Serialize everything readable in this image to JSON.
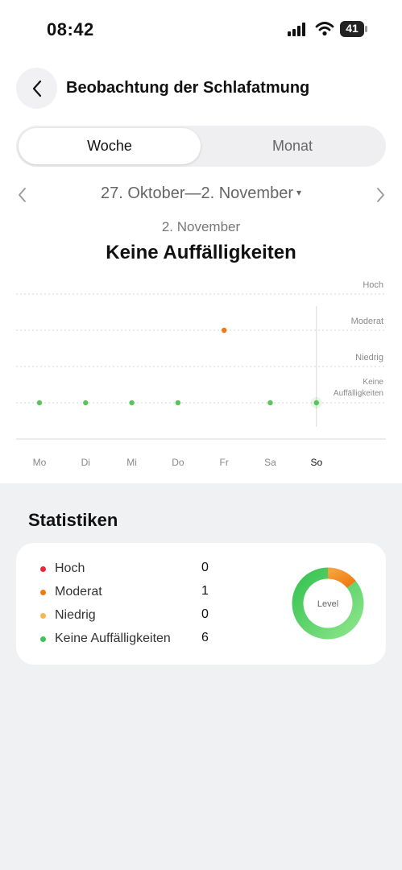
{
  "status_bar": {
    "time": "08:42",
    "battery": "41"
  },
  "header": {
    "title": "Beobachtung der Schlafatmung"
  },
  "tabs": [
    {
      "label": "Woche",
      "active": true
    },
    {
      "label": "Monat",
      "active": false
    }
  ],
  "range": {
    "label": "27. Oktober—2. November",
    "caret": "▾"
  },
  "selected": {
    "date": "2. November",
    "status": "Keine Auffälligkeiten"
  },
  "chart_data": {
    "type": "scatter",
    "categories": [
      "Mo",
      "Di",
      "Mi",
      "Do",
      "Fr",
      "Sa",
      "So"
    ],
    "levels": [
      "Hoch",
      "Moderat",
      "Niedrig",
      "Keine Auffälligkeiten"
    ],
    "values": [
      "Keine Auffälligkeiten",
      "Keine Auffälligkeiten",
      "Keine Auffälligkeiten",
      "Keine Auffälligkeiten",
      "Moderat",
      "Keine Auffälligkeiten",
      "Keine Auffälligkeiten"
    ],
    "colors": {
      "Moderat": "#f07a12",
      "Keine Auffälligkeiten": "#5cc35a"
    },
    "selected_index": 6
  },
  "stats": {
    "title": "Statistiken",
    "items": [
      {
        "label": "Hoch",
        "value": "0",
        "color": "#e8263d"
      },
      {
        "label": "Moderat",
        "value": "1",
        "color": "#f07a12"
      },
      {
        "label": "Niedrig",
        "value": "0",
        "color": "#f7b648"
      },
      {
        "label": "Keine Auffälligkeiten",
        "value": "6",
        "color": "#3cc45a"
      }
    ],
    "donut_label": "Level"
  }
}
